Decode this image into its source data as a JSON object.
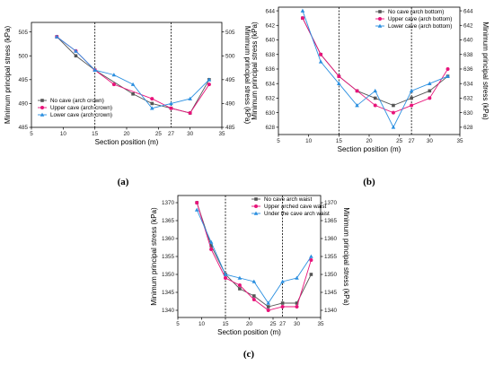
{
  "colors": {
    "series": [
      "#555555",
      "#e8137a",
      "#2a8fe0"
    ],
    "axis": "#000000",
    "vline": "#000000"
  },
  "chart_data": [
    {
      "type": "line",
      "panel": "(a)",
      "title": "",
      "xlabel": "Section position (m)",
      "ylabel": "Minimum principal stress (kPa)",
      "ylabel_right": "Minimum principal stress (kPa)",
      "xlim": [
        5,
        35
      ],
      "ylim": [
        485,
        507
      ],
      "xticks": [
        5,
        10,
        15,
        20,
        25,
        30,
        35
      ],
      "yticks": [
        485,
        490,
        495,
        500,
        505
      ],
      "grid": false,
      "vlines": [
        15,
        27
      ],
      "legend_position": "lower-left",
      "series": [
        {
          "name": "No cave (arch crown)",
          "marker": "square",
          "x": [
            9,
            12,
            15,
            21,
            24,
            27,
            30,
            33
          ],
          "y": [
            504,
            500,
            497,
            492,
            490,
            489,
            488,
            495
          ]
        },
        {
          "name": "Upper cave (arch crown)",
          "marker": "circle",
          "x": [
            9,
            12,
            15,
            18,
            24,
            27,
            30,
            33
          ],
          "y": [
            504,
            501,
            497,
            494,
            491,
            489,
            488,
            494
          ]
        },
        {
          "name": "Lower cave (arch crown)",
          "marker": "triangle",
          "x": [
            9,
            12,
            15,
            18,
            21,
            24,
            27,
            30,
            33
          ],
          "y": [
            504,
            501,
            497,
            496,
            494,
            489,
            490,
            491,
            495
          ]
        }
      ]
    },
    {
      "type": "line",
      "panel": "(b)",
      "title": "",
      "xlabel": "Section position (m)",
      "ylabel": "Minimum principal stress (kPa)",
      "ylabel_right": "Minimum principal stress (kPa)",
      "xlim": [
        5,
        35
      ],
      "ylim": [
        627,
        644.5
      ],
      "xticks": [
        5,
        10,
        15,
        20,
        25,
        30,
        35
      ],
      "yticks": [
        628,
        630,
        632,
        634,
        636,
        638,
        640,
        642,
        644
      ],
      "grid": false,
      "vlines": [
        15,
        27
      ],
      "legend_position": "top-right",
      "series": [
        {
          "name": "No cave (arch bottom)",
          "marker": "square",
          "x": [
            9,
            12,
            15,
            18,
            21,
            24,
            27,
            30,
            33
          ],
          "y": [
            643,
            638,
            635,
            633,
            632,
            631,
            632,
            633,
            635
          ]
        },
        {
          "name": "Upper cave (arch bottom)",
          "marker": "circle",
          "x": [
            9,
            12,
            15,
            18,
            21,
            24,
            27,
            30,
            33
          ],
          "y": [
            643,
            638,
            635,
            633,
            631,
            630,
            631,
            632,
            636
          ]
        },
        {
          "name": "Lower cave (arch bottom)",
          "marker": "triangle",
          "x": [
            9,
            12,
            15,
            18,
            21,
            24,
            27,
            30,
            33
          ],
          "y": [
            644,
            637,
            634,
            631,
            633,
            628,
            633,
            634,
            635
          ]
        }
      ]
    },
    {
      "type": "line",
      "panel": "(c)",
      "title": "",
      "xlabel": "Section position (m)",
      "ylabel": "Minimum principal stress (kPa)",
      "ylabel_right": "Minimum principal stress (kPa)",
      "xlim": [
        5,
        35
      ],
      "ylim": [
        1338,
        1372
      ],
      "xticks": [
        5,
        10,
        15,
        20,
        25,
        30,
        35
      ],
      "yticks": [
        1340,
        1345,
        1350,
        1355,
        1360,
        1365,
        1370
      ],
      "grid": false,
      "vlines": [
        15,
        27
      ],
      "legend_position": "top-right",
      "series": [
        {
          "name": "No cave arch waist",
          "marker": "square",
          "x": [
            9,
            12,
            15,
            18,
            21,
            24,
            27,
            30,
            33
          ],
          "y": [
            1370,
            1358,
            1350,
            1346,
            1344,
            1341,
            1342,
            1342,
            1350
          ]
        },
        {
          "name": "Upper arched cave waist",
          "marker": "circle",
          "x": [
            9,
            12,
            15,
            18,
            21,
            24,
            27,
            30,
            33
          ],
          "y": [
            1370,
            1357,
            1349,
            1347,
            1343,
            1340,
            1341,
            1341,
            1354
          ]
        },
        {
          "name": "Under the cave arch waist",
          "marker": "triangle",
          "x": [
            9,
            12,
            15,
            18,
            21,
            24,
            27,
            30,
            33
          ],
          "y": [
            1368,
            1359,
            1350,
            1349,
            1348,
            1342,
            1348,
            1349,
            1355
          ]
        }
      ]
    }
  ]
}
